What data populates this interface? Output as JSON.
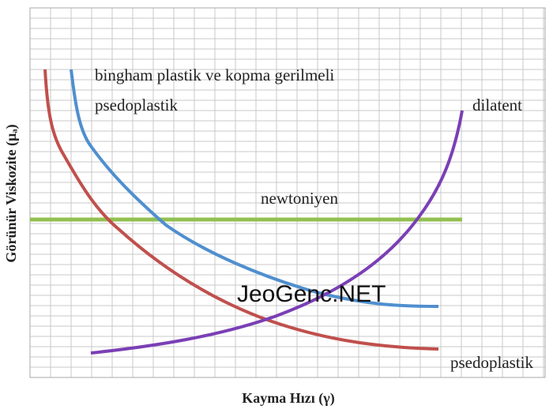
{
  "y_axis_label": "Görünür Viskozite (μₐ)",
  "x_axis_label": "Kayma Hızı (γ)",
  "curve_labels": {
    "bingham": [
      "bingham plastik ve kopma gerilmeli",
      "psedoplastik"
    ],
    "dilatent": "dilatent",
    "newtonian": "newtoniyen",
    "pseudoplastic": "psedoplastik"
  },
  "watermark": "JeoGenc.NET"
}
